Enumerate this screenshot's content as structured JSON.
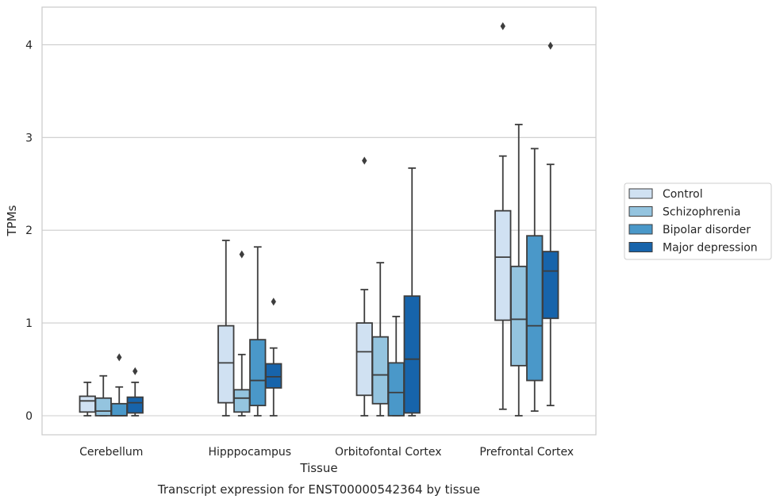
{
  "chart_data": {
    "type": "box",
    "title": "",
    "caption": "Transcript expression for ENST00000542364 by tissue",
    "xlabel": "Tissue",
    "ylabel": "TPMs",
    "ylim": [
      -0.2,
      4.4
    ],
    "yticks": [
      0,
      1,
      2,
      3,
      4
    ],
    "grid": "horizontal",
    "legend_position": "right",
    "categories": [
      "Cerebellum",
      "Hipppocampus",
      "Orbitofontal Cortex",
      "Prefrontal Cortex"
    ],
    "series": [
      {
        "name": "Control",
        "color": "#d0e1f2",
        "boxes": [
          {
            "whislo": 0.0,
            "q1": 0.04,
            "med": 0.16,
            "q3": 0.21,
            "whishi": 0.36,
            "fliers": []
          },
          {
            "whislo": 0.0,
            "q1": 0.14,
            "med": 0.57,
            "q3": 0.97,
            "whishi": 1.89,
            "fliers": []
          },
          {
            "whislo": 0.0,
            "q1": 0.22,
            "med": 0.69,
            "q3": 1.0,
            "whishi": 1.36,
            "fliers": [
              2.75
            ]
          },
          {
            "whislo": 0.07,
            "q1": 1.03,
            "med": 1.71,
            "q3": 2.21,
            "whishi": 2.8,
            "fliers": [
              4.2
            ]
          }
        ]
      },
      {
        "name": "Schizophrenia",
        "color": "#94c4df",
        "boxes": [
          {
            "whislo": 0.0,
            "q1": 0.0,
            "med": 0.05,
            "q3": 0.19,
            "whishi": 0.43,
            "fliers": []
          },
          {
            "whislo": 0.0,
            "q1": 0.04,
            "med": 0.19,
            "q3": 0.28,
            "whishi": 0.66,
            "fliers": [
              1.74
            ]
          },
          {
            "whislo": 0.0,
            "q1": 0.13,
            "med": 0.44,
            "q3": 0.85,
            "whishi": 1.65,
            "fliers": []
          },
          {
            "whislo": 0.0,
            "q1": 0.54,
            "med": 1.04,
            "q3": 1.61,
            "whishi": 3.14,
            "fliers": []
          }
        ]
      },
      {
        "name": "Bipolar disorder",
        "color": "#4a98c9",
        "boxes": [
          {
            "whislo": 0.0,
            "q1": 0.0,
            "med": 0.0,
            "q3": 0.13,
            "whishi": 0.31,
            "fliers": [
              0.63
            ]
          },
          {
            "whislo": 0.0,
            "q1": 0.11,
            "med": 0.38,
            "q3": 0.82,
            "whishi": 1.82,
            "fliers": []
          },
          {
            "whislo": 0.0,
            "q1": 0.0,
            "med": 0.25,
            "q3": 0.57,
            "whishi": 1.07,
            "fliers": []
          },
          {
            "whislo": 0.05,
            "q1": 0.38,
            "med": 0.97,
            "q3": 1.94,
            "whishi": 2.88,
            "fliers": []
          }
        ]
      },
      {
        "name": "Major depression",
        "color": "#1764ab",
        "boxes": [
          {
            "whislo": 0.0,
            "q1": 0.03,
            "med": 0.14,
            "q3": 0.2,
            "whishi": 0.36,
            "fliers": [
              0.48
            ]
          },
          {
            "whislo": 0.0,
            "q1": 0.3,
            "med": 0.42,
            "q3": 0.56,
            "whishi": 0.73,
            "fliers": [
              1.23
            ]
          },
          {
            "whislo": 0.0,
            "q1": 0.03,
            "med": 0.61,
            "q3": 1.29,
            "whishi": 2.67,
            "fliers": []
          },
          {
            "whislo": 0.11,
            "q1": 1.05,
            "med": 1.56,
            "q3": 1.77,
            "whishi": 2.71,
            "fliers": [
              3.99
            ]
          }
        ]
      }
    ]
  }
}
